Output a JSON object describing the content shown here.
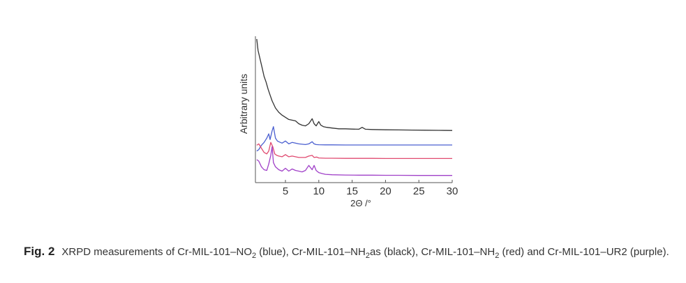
{
  "chart_data": {
    "type": "line",
    "title": "",
    "xlabel": "2Θ /°",
    "ylabel": "Arbitrary units",
    "xlim": [
      0.5,
      30
    ],
    "ylim": [
      0,
      100
    ],
    "xticks": [
      5,
      10,
      15,
      20,
      25,
      30
    ],
    "grid": false,
    "legend": "none",
    "series": [
      {
        "color": "#333333",
        "x": [
          0.7,
          0.9,
          1.2,
          1.5,
          1.8,
          2.1,
          2.4,
          2.7,
          3.0,
          3.5,
          4.0,
          4.5,
          5.0,
          5.5,
          6.0,
          6.5,
          7.0,
          7.5,
          8.0,
          8.5,
          8.8,
          9.0,
          9.3,
          9.6,
          10.0,
          10.3,
          10.7,
          11.2,
          12,
          13,
          14,
          15,
          16,
          16.5,
          17,
          18,
          20,
          22,
          24,
          26,
          28,
          30
        ],
        "y": [
          100,
          92,
          86,
          80,
          74,
          70,
          65,
          61,
          57,
          52,
          49,
          47,
          45.5,
          44,
          43.5,
          43,
          41,
          40,
          39.5,
          41,
          43,
          44.5,
          41,
          39.5,
          42.5,
          40,
          39,
          38.5,
          38,
          37.5,
          37.5,
          37.3,
          37.2,
          38.5,
          37.2,
          37,
          36.8,
          36.7,
          36.6,
          36.5,
          36.4,
          36.3
        ]
      },
      {
        "color": "#4a5fd0",
        "x": [
          0.7,
          1.0,
          1.4,
          1.8,
          2.2,
          2.5,
          2.7,
          3.0,
          3.2,
          3.5,
          3.8,
          4.0,
          4.5,
          5.0,
          5.5,
          6.0,
          7.0,
          8.0,
          8.5,
          9.0,
          9.3,
          9.6,
          10,
          11,
          12,
          14,
          16,
          18,
          20,
          22,
          25,
          28,
          30
        ],
        "y": [
          22,
          23,
          26,
          28,
          31,
          34,
          30,
          36,
          39,
          31,
          29,
          28.5,
          27.5,
          29,
          27,
          28,
          27,
          26.5,
          27,
          28.5,
          27,
          26.5,
          26.4,
          26.3,
          26.3,
          26.2,
          26.2,
          26.2,
          26.2,
          26.2,
          26.2,
          26.2,
          26.2
        ]
      },
      {
        "color": "#e04a70",
        "x": [
          0.7,
          1.0,
          1.4,
          1.8,
          2.2,
          2.5,
          2.8,
          3.1,
          3.4,
          3.7,
          4.0,
          4.5,
          5.0,
          5.5,
          6.0,
          7.0,
          8.0,
          8.5,
          9.0,
          9.3,
          9.7,
          10,
          11,
          12,
          14,
          16,
          18,
          20,
          22,
          25,
          28,
          30
        ],
        "y": [
          26,
          27,
          24,
          21,
          20,
          22,
          28,
          25,
          20,
          19,
          18.5,
          18,
          19.5,
          18,
          18.5,
          17.5,
          17.5,
          18.5,
          19,
          17.5,
          17.8,
          17.2,
          17,
          17,
          16.9,
          16.9,
          16.9,
          16.8,
          16.8,
          16.8,
          16.8,
          16.8
        ]
      },
      {
        "color": "#a040c8",
        "x": [
          0.7,
          1.0,
          1.4,
          1.8,
          2.2,
          2.5,
          2.8,
          3.0,
          3.2,
          3.5,
          4.0,
          4.5,
          5.0,
          5.5,
          6.0,
          6.5,
          7.0,
          7.5,
          8.0,
          8.5,
          9.0,
          9.3,
          9.6,
          10,
          10.5,
          11,
          12,
          14,
          16,
          18,
          20,
          22,
          25,
          28,
          30
        ],
        "y": [
          16,
          15,
          11,
          9,
          8.5,
          13,
          19,
          25,
          14,
          11,
          9,
          8,
          10,
          8,
          9.5,
          8.5,
          8,
          7.5,
          8.5,
          12,
          9,
          12,
          8.5,
          7,
          6.3,
          5.8,
          5.5,
          5.3,
          5.2,
          5.2,
          5.1,
          5.1,
          5,
          5,
          5
        ]
      }
    ]
  },
  "caption": {
    "fig_label": "Fig. 2",
    "t1": "XRPD measurements of Cr-MIL-101–NO",
    "s1": "2",
    "t2": " (blue), Cr-MIL-101–NH",
    "s2": "2",
    "t3": "as (black), Cr-MIL-101–NH",
    "s3": "2",
    "t4": " (red) and Cr-MIL-101–UR2 (purple)."
  }
}
